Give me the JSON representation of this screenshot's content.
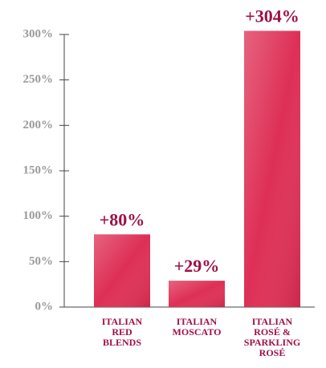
{
  "chart_data": {
    "type": "bar",
    "categories": [
      "ITALIAN\nRED\nBLENDS",
      "ITALIAN\nMOSCATO",
      "ITALIAN\nROSÉ &\nSPARKLING\nROSÉ"
    ],
    "values": [
      80,
      29,
      304
    ],
    "value_labels": [
      "+80%",
      "+29%",
      "+304%"
    ],
    "color": "#de2f55",
    "ylim": [
      0,
      300
    ],
    "yticks": [
      {
        "value": 0,
        "label": "0%"
      },
      {
        "value": 50,
        "label": "50%"
      },
      {
        "value": 100,
        "label": "100%"
      },
      {
        "value": 150,
        "label": "150%"
      },
      {
        "value": 200,
        "label": "200%"
      },
      {
        "value": 250,
        "label": "250%"
      },
      {
        "value": 300,
        "label": "300%"
      }
    ]
  }
}
